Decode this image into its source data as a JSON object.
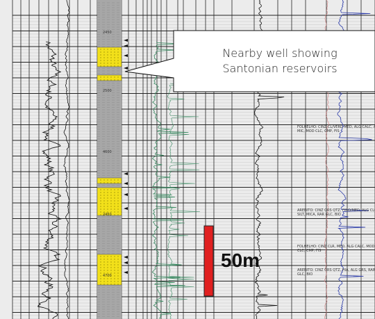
{
  "callout": {
    "line1": "Nearby well showing",
    "line2": "Santonian reservoirs"
  },
  "scale_bar": {
    "label": "50m",
    "color": "#e02020"
  },
  "colors": {
    "sand": "#f2e01a",
    "shale": "#a7a7a7",
    "green_curve": "#3b8a62",
    "blue_curve": "#2a3aa8",
    "red_curve": "#d27a7a",
    "black_curve": "#111111",
    "grid": "#222222",
    "background": "#ececec"
  },
  "depth_labels": [
    "2450",
    "2500",
    "4600",
    "2450",
    "4700"
  ],
  "lithology_annotations": [
    "FOLHELHO: CINZ CL/VERD MED, ALG CALC, ALG MIC, MOD CLC, CMP, FIS",
    "ARENITO: CINZ GRS QTZ, FINO/MED, ALG CLC, SILT, MICA, RAR GLC, BIO",
    "FOLHELHO: CINZ CLR, MED, ALG CALC, MOD CLC, CMP, FIS",
    "ARENITO: CINZ GRS QTZ, HIA, ALG GRS, RAR GLC, BIO"
  ]
}
